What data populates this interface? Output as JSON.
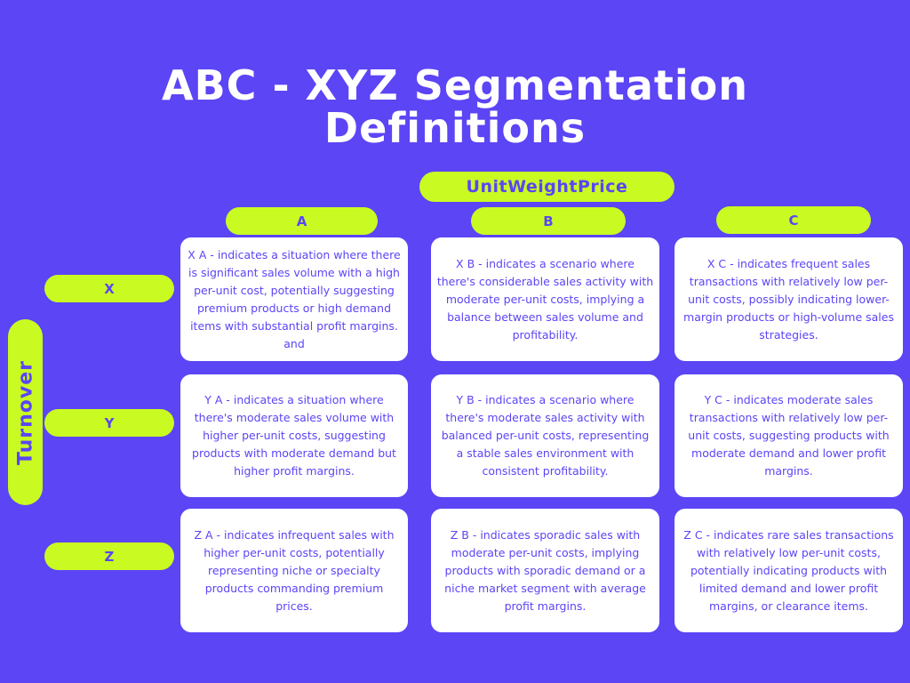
{
  "title_line1": "ABC - XYZ Segmentation",
  "title_line2": "Definitions",
  "column_header": "UnitWeightPrice",
  "columns": [
    "A",
    "B",
    "C"
  ],
  "row_header": "Turnover",
  "rows": [
    "X",
    "Y",
    "Z"
  ],
  "cells": {
    "XA": "X A - indicates a situation where there is significant sales volume with a high per-unit cost, potentially suggesting premium products or high demand items with substantial profit margins. and",
    "XB": "X B - indicates a scenario where there's considerable sales activity with moderate per-unit costs, implying a balance between sales volume and profitability.",
    "XC": "X C - indicates frequent sales transactions with relatively low per-unit costs, possibly indicating lower-margin products or high-volume sales strategies.",
    "YA": "Y A - indicates a situation where there's moderate sales volume with higher per-unit costs, suggesting products with moderate demand but higher profit margins.",
    "YB": "Y B - indicates a scenario where there's moderate sales activity with balanced per-unit costs, representing a stable sales environment with consistent profitability.",
    "YC": "Y C - indicates moderate sales transactions with relatively low per-unit costs, suggesting products with moderate demand and lower profit margins.",
    "ZA": "Z A - indicates infrequent sales with higher per-unit costs, potentially representing niche or specialty products commanding premium prices.",
    "ZB": "Z B - indicates sporadic sales with moderate per-unit costs, implying products with sporadic demand or a niche market segment with average profit margins.",
    "ZC": "Z C - indicates rare sales transactions with relatively low per-unit costs, potentially indicating products with limited demand and lower profit margins, or clearance items."
  },
  "colors": {
    "background": "#5b45f5",
    "accent": "#c9fb22",
    "card": "#ffffff"
  }
}
